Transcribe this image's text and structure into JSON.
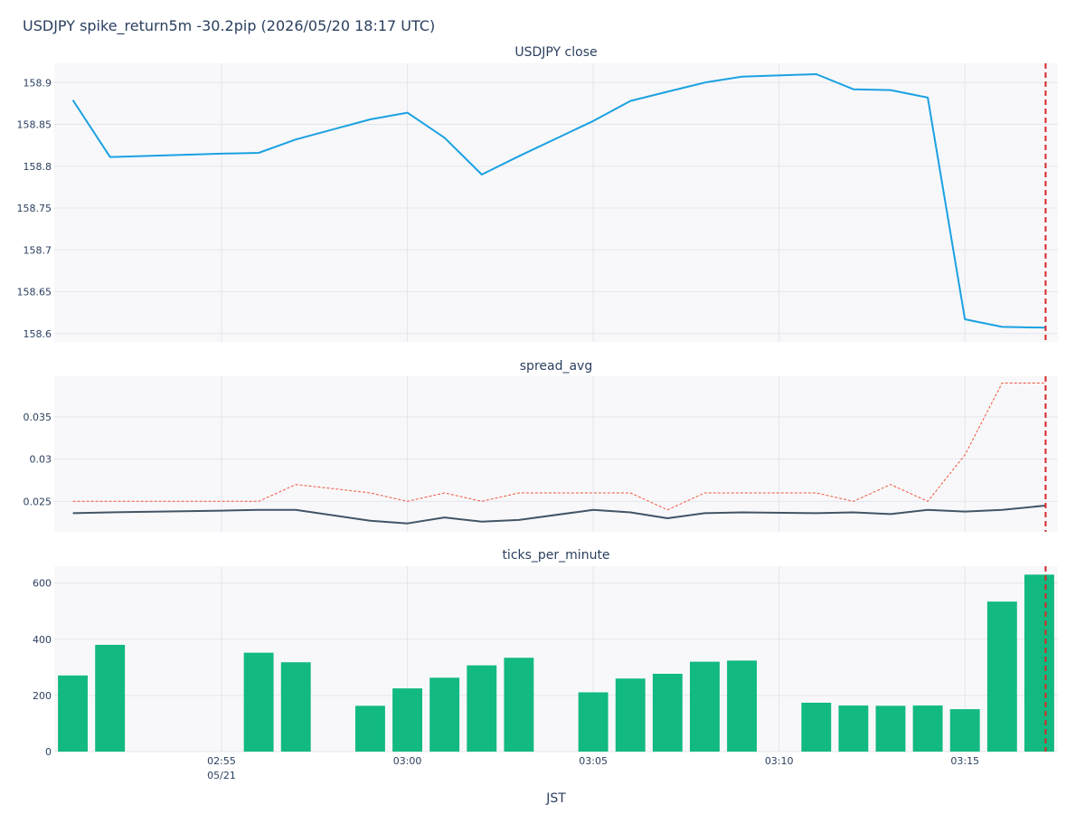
{
  "title": "USDJPY spike_return5m -30.2pip (2026/05/20 18:17 UTC)",
  "xaxis_title": "JST",
  "x_ticks": [
    {
      "minute": 1015,
      "label": "02:55",
      "sublabel": "05/21"
    },
    {
      "minute": 1020,
      "label": "03:00",
      "sublabel": ""
    },
    {
      "minute": 1025,
      "label": "03:05",
      "sublabel": ""
    },
    {
      "minute": 1030,
      "label": "03:10",
      "sublabel": ""
    },
    {
      "minute": 1035,
      "label": "03:15",
      "sublabel": ""
    }
  ],
  "spike_marker": {
    "minute": 1037.17,
    "color": "#d62728"
  },
  "colors": {
    "line_close": "#1ba1e2",
    "spread_line": "#425466",
    "spread_ref": "#ef553b",
    "bars": "#12b981",
    "plot_bg": "#f8f8fa",
    "grid": "#e3e6ee"
  },
  "chart_data": [
    {
      "type": "line",
      "title": "USDJPY close",
      "xlim": [
        1010.5,
        1037.5
      ],
      "ylim": [
        158.59,
        158.923
      ],
      "yticks": [
        158.6,
        158.65,
        158.7,
        158.75,
        158.8,
        158.85,
        158.9
      ],
      "ytick_labels": [
        "158.6",
        "158.65",
        "158.7",
        "158.75",
        "158.8",
        "158.85",
        "158.9"
      ],
      "grid": true,
      "series": [
        {
          "color": "#1ba1e2",
          "dash": "solid",
          "x": [
            1011,
            1012,
            1015,
            1016,
            1017,
            1019,
            1020,
            1021,
            1022,
            1023,
            1025,
            1026,
            1027,
            1028,
            1029,
            1031,
            1032,
            1033,
            1034,
            1035,
            1036,
            1037.17
          ],
          "y": [
            158.879,
            158.811,
            158.815,
            158.816,
            158.832,
            158.856,
            158.864,
            158.834,
            158.79,
            158.812,
            158.854,
            158.878,
            158.889,
            158.9,
            158.907,
            158.91,
            158.892,
            158.891,
            158.882,
            158.617,
            158.608,
            158.607
          ]
        }
      ]
    },
    {
      "type": "line",
      "title": "spread_avg",
      "xlim": [
        1010.5,
        1037.5
      ],
      "ylim": [
        0.0214,
        0.0398
      ],
      "yticks": [
        0.025,
        0.03,
        0.035
      ],
      "ytick_labels": [
        "0.025",
        "0.03",
        "0.035"
      ],
      "grid": true,
      "series": [
        {
          "color": "#ef553b",
          "dash": "dot",
          "x": [
            1011,
            1016,
            1017,
            1018,
            1019,
            1020,
            1021,
            1022,
            1023,
            1024,
            1025,
            1026,
            1027,
            1028,
            1029,
            1030,
            1031,
            1032,
            1033,
            1034,
            1035,
            1036,
            1037.17
          ],
          "y": [
            0.025,
            0.025,
            0.027,
            0.0265,
            0.026,
            0.025,
            0.026,
            0.025,
            0.026,
            0.026,
            0.026,
            0.026,
            0.024,
            0.026,
            0.026,
            0.026,
            0.026,
            0.025,
            0.027,
            0.025,
            0.0305,
            0.039,
            0.039
          ]
        },
        {
          "color": "#425466",
          "dash": "solid",
          "x": [
            1011,
            1012,
            1015,
            1016,
            1017,
            1019,
            1020,
            1021,
            1022,
            1023,
            1025,
            1026,
            1027,
            1028,
            1029,
            1031,
            1032,
            1033,
            1034,
            1035,
            1036,
            1037.17
          ],
          "y": [
            0.0236,
            0.0237,
            0.0239,
            0.024,
            0.024,
            0.0227,
            0.0224,
            0.0231,
            0.0226,
            0.0228,
            0.024,
            0.0237,
            0.023,
            0.0236,
            0.0237,
            0.0236,
            0.0237,
            0.0235,
            0.024,
            0.0238,
            0.024,
            0.0245
          ]
        }
      ]
    },
    {
      "type": "bar",
      "title": "ticks_per_minute",
      "xlim": [
        1010.5,
        1037.5
      ],
      "ylim": [
        0,
        660
      ],
      "yticks": [
        0,
        200,
        400,
        600
      ],
      "ytick_labels": [
        "0",
        "200",
        "400",
        "600"
      ],
      "grid": true,
      "color": "#12b981",
      "x": [
        1011,
        1012,
        1016,
        1017,
        1019,
        1020,
        1021,
        1022,
        1023,
        1025,
        1026,
        1027,
        1028,
        1029,
        1031,
        1032,
        1033,
        1034,
        1035,
        1036,
        1037
      ],
      "values": [
        271,
        380,
        352,
        318,
        163,
        225,
        263,
        307,
        334,
        211,
        260,
        277,
        320,
        324,
        174,
        164,
        163,
        164,
        151,
        534,
        630
      ]
    }
  ]
}
